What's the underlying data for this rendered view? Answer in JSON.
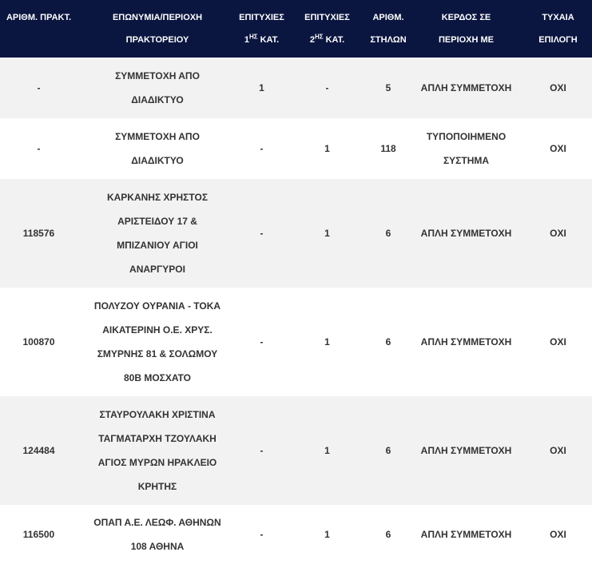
{
  "table": {
    "headers": {
      "agency_number": "ΑΡΙΘΜ. ΠΡΑΚΤ.",
      "name_line1": "ΕΠΩΝΥΜΙΑ/ΠΕΡΙΟΧΗ",
      "name_line2": "ΠΡΑΚΤΟΡΕΙΟΥ",
      "wins1_line1": "ΕΠΙΤΥΧΙΕΣ",
      "wins1_num": "1",
      "wins1_sup": "ΗΣ",
      "wins1_cat": " ΚΑΤ.",
      "wins2_line1": "ΕΠΙΤΥΧΙΕΣ",
      "wins2_num": "2",
      "wins2_sup": "ΗΣ",
      "wins2_cat": " ΚΑΤ.",
      "columns_line1": "ΑΡΙΘΜ.",
      "columns_line2": "ΣΤΗΛΩΝ",
      "win_in_line1": "ΚΕΡΔΟΣ ΣΕ",
      "win_in_line2": "ΠΕΡΙΟΧΗ ΜΕ",
      "random_line1": "ΤΥΧΑΙΑ",
      "random_line2": "ΕΠΙΛΟΓΗ"
    },
    "rows": [
      {
        "agency": "-",
        "name_lines": [
          "ΣΥΜΜΕΤΟΧΗ ΑΠΟ",
          "ΔΙΑΔΙΚΤΥΟ"
        ],
        "wins1": "1",
        "wins2": "-",
        "columns": "5",
        "win_in_lines": [
          "ΑΠΛΗ ΣΥΜΜΕΤΟΧΗ"
        ],
        "random": "ΟΧΙ"
      },
      {
        "agency": "-",
        "name_lines": [
          "ΣΥΜΜΕΤΟΧΗ ΑΠΟ",
          "ΔΙΑΔΙΚΤΥΟ"
        ],
        "wins1": "-",
        "wins2": "1",
        "columns": "118",
        "win_in_lines": [
          "ΤΥΠΟΠΟΙΗΜΕΝΟ",
          "ΣΥΣΤΗΜΑ"
        ],
        "random": "ΟΧΙ"
      },
      {
        "agency": "118576",
        "name_lines": [
          "ΚΑΡΚΑΝΗΣ ΧΡΗΣΤΟΣ",
          "ΑΡΙΣΤΕΙΔΟΥ 17 &",
          "ΜΠΙΖΑΝΙΟΥ  ΑΓΙΟΙ",
          "ΑΝΑΡΓΥΡΟΙ"
        ],
        "wins1": "-",
        "wins2": "1",
        "columns": "6",
        "win_in_lines": [
          "ΑΠΛΗ ΣΥΜΜΕΤΟΧΗ"
        ],
        "random": "ΟΧΙ"
      },
      {
        "agency": "100870",
        "name_lines": [
          "ΠΟΛΥΖΟΥ ΟΥΡΑΝΙΑ - ΤΟΚΑ",
          "ΑΙΚΑΤΕΡΙΝΗ Ο.Ε.  ΧΡΥΣ.",
          "ΣΜΥΡΝΗΣ 81 & ΣΟΛΩΜΟΥ",
          "80Β  ΜΟΣΧΑΤΟ"
        ],
        "wins1": "-",
        "wins2": "1",
        "columns": "6",
        "win_in_lines": [
          "ΑΠΛΗ ΣΥΜΜΕΤΟΧΗ"
        ],
        "random": "ΟΧΙ"
      },
      {
        "agency": "124484",
        "name_lines": [
          "ΣΤΑΥΡΟΥΛΑΚΗ ΧΡΙΣΤΙΝΑ",
          "ΤΑΓΜΑΤΑΡΧΗ ΤΖΟΥΛΑΚΗ",
          "ΑΓΙΟΣ ΜΥΡΩΝ ΗΡΑΚΛΕΙΟ",
          "ΚΡΗΤΗΣ"
        ],
        "wins1": "-",
        "wins2": "1",
        "columns": "6",
        "win_in_lines": [
          "ΑΠΛΗ ΣΥΜΜΕΤΟΧΗ"
        ],
        "random": "ΟΧΙ"
      },
      {
        "agency": "116500",
        "name_lines": [
          "ΟΠΑΠ Α.Ε.  ΛΕΩΦ. ΑΘΗΝΩΝ",
          "108  ΑΘΗΝΑ"
        ],
        "wins1": "-",
        "wins2": "1",
        "columns": "6",
        "win_in_lines": [
          "ΑΠΛΗ ΣΥΜΜΕΤΟΧΗ"
        ],
        "random": "ΟΧΙ"
      }
    ]
  },
  "colors": {
    "header_bg": "#0b1640",
    "header_text": "#ffffff",
    "row_odd_bg": "#f2f2f2",
    "row_even_bg": "#ffffff",
    "body_text": "#333333"
  }
}
